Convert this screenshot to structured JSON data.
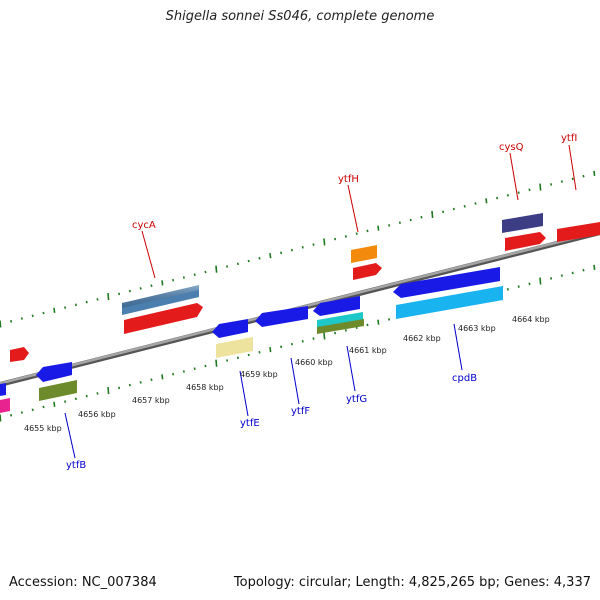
{
  "title": "Shigella sonnei Ss046, complete genome",
  "footer": {
    "accession": "Accession: NC_007384",
    "summary": "Topology: circular; Length: 4,825,265 bp; Genes: 4,337"
  },
  "colors": {
    "backbone": "#8a8a8a",
    "tick": "#1f7a1f",
    "top_label": "#cc0000",
    "bottom_label": "#0000cc"
  },
  "kbp_labels": [
    "4655 kbp",
    "4656 kbp",
    "4657 kbp",
    "4658 kbp",
    "4659 kbp",
    "4660 kbp",
    "4661 kbp",
    "4662 kbp",
    "4663 kbp",
    "4664 kbp"
  ],
  "gene_labels": {
    "top": [
      "cycA",
      "ytfH",
      "cysQ",
      "ytfI"
    ],
    "bottom": [
      "ytfB",
      "ytfE",
      "ytfF",
      "ytfG",
      "cpdB"
    ]
  }
}
